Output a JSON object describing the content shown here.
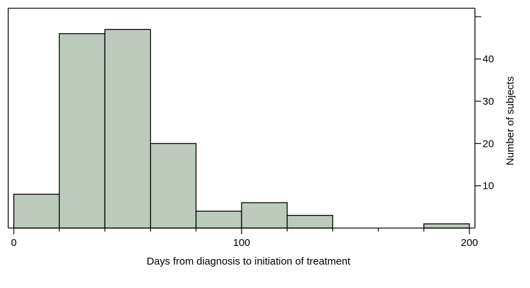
{
  "chart_data": {
    "type": "bar",
    "subtype": "histogram",
    "bin_edges": [
      0,
      20,
      40,
      60,
      80,
      100,
      120,
      140,
      160,
      180,
      200
    ],
    "values": [
      8,
      46,
      47,
      20,
      4,
      6,
      3,
      0,
      0,
      1
    ],
    "xlabel": "Days from diagnosis to initiation of treatment",
    "ylabel": "Number of subjects",
    "xlim": [
      0,
      200
    ],
    "ylim": [
      0,
      52
    ],
    "x_ticks": [
      0,
      100,
      200
    ],
    "x_minor_ticks": [
      20,
      40,
      60,
      80,
      120,
      140,
      160,
      180
    ],
    "y_ticks": [
      10,
      20,
      30,
      40
    ],
    "y_minor_ticks": [
      50
    ],
    "y_axis_side": "right",
    "grid": false,
    "legend": "none",
    "bar_color": "#bccbbb",
    "edge_color": "#000000"
  }
}
